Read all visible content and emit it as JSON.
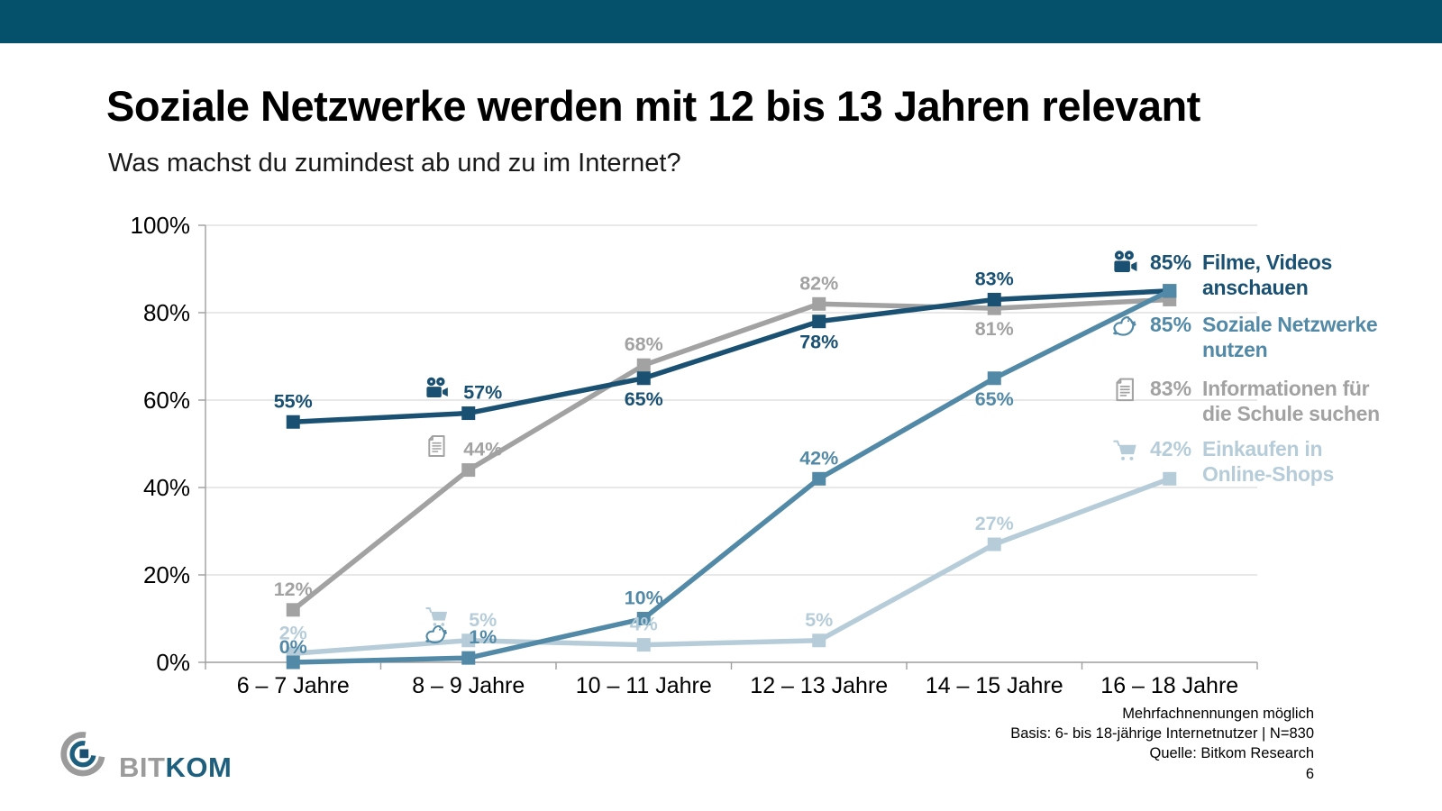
{
  "slide": {
    "title": "Soziale Netzwerke werden mit 12 bis 13 Jahren relevant",
    "subtitle": "Was machst du zumindest ab und zu im Internet?",
    "footnotes": [
      "Mehrfachnennungen möglich",
      "Basis: 6- bis 18-jährige Internetnutzer | N=830",
      "Quelle: Bitkom Research"
    ],
    "page_number": "6"
  },
  "logo": {
    "bit": "BIT",
    "kom": "KOM"
  },
  "colors": {
    "top_bar": "#05506B",
    "gridline": "#D9D9D9",
    "axis": "#9E9E9E",
    "logo_bit": "#9B9B9B",
    "logo_kom": "#1E5F7E",
    "logo_square": "#1B4F72"
  },
  "chart_data": {
    "type": "line",
    "title": "Was machst du zumindest ab und zu im Internet?",
    "xlabel": "",
    "ylabel": "",
    "grid": true,
    "legend_position": "right",
    "ylim": [
      0,
      100
    ],
    "yticks": [
      {
        "v": 0,
        "label": "0%"
      },
      {
        "v": 20,
        "label": "20%"
      },
      {
        "v": 40,
        "label": "40%"
      },
      {
        "v": 60,
        "label": "60%"
      },
      {
        "v": 80,
        "label": "80%"
      },
      {
        "v": 100,
        "label": "100%"
      }
    ],
    "categories": [
      "6 – 7 Jahre",
      "8 – 9 Jahre",
      "10 – 11 Jahre",
      "12 – 13 Jahre",
      "14 – 15 Jahre",
      "16 – 18 Jahre"
    ],
    "z_order": [
      3,
      2,
      0,
      1
    ],
    "series": [
      {
        "id": "filme-videos",
        "name": "Filme, Videos anschauen",
        "icon": "video-camera",
        "color": "#1A5173",
        "values": [
          55,
          57,
          65,
          78,
          83,
          85
        ],
        "point_labels": [
          "55%",
          "57%",
          "65%",
          "78%",
          "83%",
          null
        ],
        "label_side": [
          "above",
          "above",
          "below",
          "below",
          "above",
          null
        ],
        "legend": {
          "value": "85%",
          "lines": [
            "Filme, Videos",
            "anschauen"
          ]
        }
      },
      {
        "id": "soziale-netzwerke",
        "name": "Soziale Netzwerke nutzen",
        "icon": "bird",
        "color": "#5289A6",
        "values": [
          0,
          1,
          10,
          42,
          65,
          85
        ],
        "point_labels": [
          "0%",
          "1%",
          "10%",
          "42%",
          "65%",
          null
        ],
        "label_side": [
          -10,
          "above",
          "above",
          "above",
          "below",
          null
        ],
        "legend": {
          "value": "85%",
          "lines": [
            "Soziale Netzwerke",
            "nutzen"
          ]
        }
      },
      {
        "id": "informationen-schule",
        "name": "Informationen für die Schule suchen",
        "icon": "document",
        "color": "#A2A2A2",
        "values": [
          12,
          44,
          68,
          82,
          81,
          83
        ],
        "point_labels": [
          "12%",
          "44%",
          "68%",
          "82%",
          "81%",
          null
        ],
        "label_side": [
          "above",
          "above",
          "above",
          "above",
          "below",
          null
        ],
        "legend": {
          "value": "83%",
          "lines": [
            "Informationen für",
            "die Schule suchen"
          ]
        }
      },
      {
        "id": "einkaufen-online-shops",
        "name": "Einkaufen in Online-Shops",
        "icon": "cart",
        "color": "#B6CDD9",
        "values": [
          2,
          5,
          4,
          5,
          27,
          42
        ],
        "point_labels": [
          "2%",
          "5%",
          "4%",
          "5%",
          "27%",
          null
        ],
        "label_side": [
          "above",
          "above",
          "above",
          "above",
          "above",
          null
        ],
        "legend": {
          "value": "42%",
          "lines": [
            "Einkaufen in",
            "Online-Shops"
          ]
        }
      }
    ]
  }
}
